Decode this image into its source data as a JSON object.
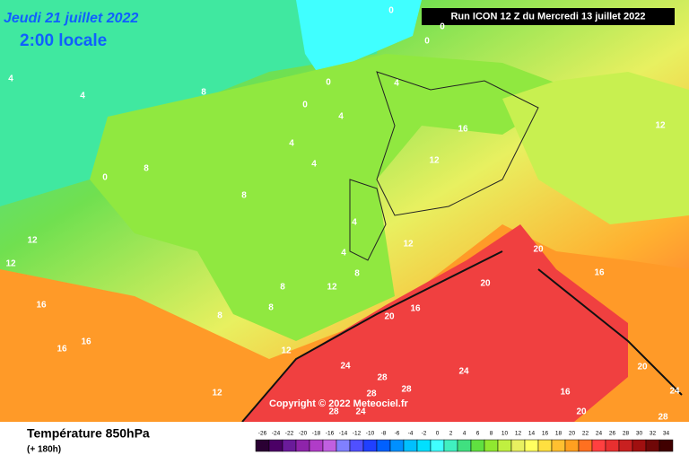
{
  "header": {
    "date": "Jeudi 21 juillet 2022",
    "time": "2:00 locale",
    "run": "Run ICON 12 Z du Mercredi 13 juillet 2022"
  },
  "copyright": "Copyright © 2022 Meteociel.fr",
  "footer": {
    "title": "Température 850hPa",
    "lead": "(+ 180h)"
  },
  "scale": {
    "ticks": [
      -26,
      -24,
      -22,
      -20,
      -18,
      -16,
      -14,
      -12,
      -10,
      -8,
      -6,
      -4,
      -2,
      0,
      2,
      4,
      6,
      8,
      10,
      12,
      14,
      16,
      18,
      20,
      22,
      24,
      26,
      28,
      30,
      32,
      34
    ],
    "colors": [
      "#2a0033",
      "#4b0066",
      "#6a1b9a",
      "#8e24aa",
      "#b03cc8",
      "#c060e0",
      "#8080ff",
      "#5050ff",
      "#2040ff",
      "#0060ff",
      "#0090ff",
      "#00c0ff",
      "#00e0ff",
      "#40ffff",
      "#40f0c0",
      "#40e080",
      "#60e040",
      "#90e830",
      "#c0f040",
      "#e8f060",
      "#ffff60",
      "#ffe040",
      "#ffc030",
      "#ffa020",
      "#ff7020",
      "#ff4040",
      "#e83030",
      "#c82020",
      "#a01010",
      "#700808",
      "#400000"
    ]
  },
  "contour_labels": [
    0,
    0,
    0,
    0,
    0,
    0,
    4,
    4,
    4,
    4,
    4,
    4,
    4,
    4,
    8,
    8,
    8,
    8,
    8,
    8,
    8,
    12,
    12,
    12,
    12,
    12,
    12,
    12,
    12,
    16,
    16,
    16,
    16,
    16,
    16,
    16,
    20,
    20,
    20,
    20,
    20,
    24,
    24,
    24,
    24,
    28,
    28,
    28,
    28,
    28
  ]
}
